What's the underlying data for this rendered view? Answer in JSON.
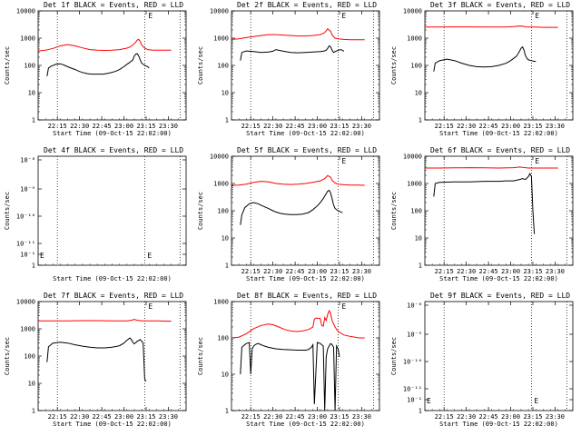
{
  "chart_data": [
    {
      "type": "line",
      "title": "Det 1f BLACK = Events, RED = LLD",
      "xlabel": "Start Time (09-Oct-15 22:02:00)",
      "ylabel": "Counts/sec",
      "y_scale": "log",
      "ylim": [
        1,
        10000
      ],
      "yticks": [
        "1",
        "10",
        "100",
        "1000",
        "10000"
      ],
      "xticks": [
        "22:15",
        "22:30",
        "22:45",
        "23:00",
        "23:15",
        "23:30"
      ],
      "x_minutes": [
        13,
        28,
        43,
        58,
        73,
        88
      ],
      "xlim": [
        0,
        100
      ],
      "vlines": [
        13,
        72,
        96
      ],
      "letter": "E",
      "series": [
        {
          "color": "#ff0000",
          "x": [
            0,
            5,
            10,
            15,
            20,
            25,
            30,
            35,
            40,
            45,
            50,
            55,
            60,
            62,
            64,
            66,
            67,
            68,
            69,
            70,
            72,
            74,
            78,
            82,
            86,
            90
          ],
          "y": [
            340,
            360,
            420,
            520,
            580,
            520,
            440,
            380,
            360,
            355,
            360,
            380,
            430,
            470,
            560,
            720,
            860,
            900,
            760,
            560,
            430,
            380,
            360,
            360,
            360,
            360
          ]
        },
        {
          "color": "#000000",
          "x": [
            6,
            7,
            9,
            12,
            15,
            18,
            21,
            25,
            28,
            30,
            33,
            36,
            40,
            44,
            48,
            52,
            55,
            58,
            60,
            62,
            64,
            65,
            66,
            67,
            68,
            69,
            70,
            72,
            74,
            75
          ],
          "y": [
            40,
            80,
            95,
            110,
            115,
            100,
            85,
            70,
            60,
            55,
            50,
            48,
            48,
            48,
            52,
            60,
            70,
            90,
            110,
            130,
            160,
            220,
            260,
            270,
            220,
            160,
            120,
            100,
            90,
            80
          ]
        }
      ]
    },
    {
      "type": "line",
      "title": "Det 2f BLACK = Events, RED = LLD",
      "xlabel": "Start Time (09-Oct-15 22:02:00)",
      "ylabel": "Counts/sec",
      "y_scale": "log",
      "ylim": [
        1,
        10000
      ],
      "yticks": [
        "1",
        "10",
        "100",
        "1000",
        "10000"
      ],
      "xticks": [
        "22:15",
        "22:30",
        "22:45",
        "23:00",
        "23:15",
        "23:30"
      ],
      "x_minutes": [
        13,
        28,
        43,
        58,
        73,
        88
      ],
      "xlim": [
        0,
        100
      ],
      "vlines": [
        13,
        72,
        96
      ],
      "letter": "E",
      "series": [
        {
          "color": "#ff0000",
          "x": [
            0,
            5,
            10,
            15,
            20,
            25,
            30,
            35,
            40,
            45,
            50,
            55,
            60,
            63,
            65,
            67,
            68,
            70,
            72,
            76,
            80,
            85,
            90
          ],
          "y": [
            900,
            950,
            1050,
            1150,
            1250,
            1350,
            1350,
            1300,
            1250,
            1200,
            1200,
            1250,
            1350,
            1600,
            2200,
            1800,
            1300,
            1000,
            950,
            900,
            880,
            880,
            880
          ]
        },
        {
          "color": "#000000",
          "x": [
            6,
            7,
            10,
            15,
            20,
            25,
            28,
            30,
            35,
            40,
            45,
            50,
            55,
            60,
            62,
            64,
            65,
            66,
            67,
            68,
            69,
            70,
            72,
            74,
            76
          ],
          "y": [
            150,
            300,
            340,
            320,
            300,
            310,
            330,
            380,
            330,
            300,
            290,
            300,
            310,
            320,
            330,
            360,
            420,
            520,
            480,
            360,
            300,
            320,
            360,
            380,
            330
          ]
        }
      ]
    },
    {
      "type": "line",
      "title": "Det 3f BLACK = Events, RED = LLD",
      "xlabel": "Start Time (09-Oct-15 22:02:00)",
      "ylabel": "Counts/sec",
      "y_scale": "log",
      "ylim": [
        1,
        10000
      ],
      "yticks": [
        "1",
        "10",
        "100",
        "1000",
        "10000"
      ],
      "xticks": [
        "22:15",
        "22:30",
        "22:45",
        "23:00",
        "23:15",
        "23:30"
      ],
      "x_minutes": [
        13,
        28,
        43,
        58,
        73,
        88
      ],
      "xlim": [
        0,
        100
      ],
      "vlines": [
        13,
        72,
        96
      ],
      "letter": "E",
      "series": [
        {
          "color": "#ff0000",
          "x": [
            0,
            10,
            20,
            30,
            40,
            50,
            55,
            60,
            64,
            66,
            68,
            70,
            75,
            80,
            90
          ],
          "y": [
            2550,
            2550,
            2600,
            2600,
            2550,
            2550,
            2560,
            2650,
            2800,
            2750,
            2600,
            2550,
            2550,
            2500,
            2500
          ]
        },
        {
          "color": "#000000",
          "x": [
            6,
            7,
            10,
            15,
            20,
            25,
            30,
            35,
            40,
            45,
            50,
            55,
            58,
            60,
            62,
            64,
            65,
            66,
            67,
            68,
            69,
            70,
            72,
            74,
            75
          ],
          "y": [
            60,
            120,
            150,
            170,
            150,
            120,
            100,
            90,
            88,
            90,
            100,
            120,
            150,
            180,
            220,
            330,
            420,
            480,
            360,
            230,
            180,
            160,
            150,
            140,
            140
          ]
        }
      ]
    },
    {
      "type": "line",
      "title": "Det 4f BLACK = Events, RED = LLD",
      "xlabel": "Start Time (09-Oct-15 22:02:00)",
      "ylabel": "Counts/sec",
      "y_scale": "log",
      "ylim": [
        1,
        1e-08
      ],
      "yticks": [
        "10⁻¹¹",
        "10⁻¹⁰",
        "10⁻⁹",
        "10⁻⁸"
      ],
      "yticks_extra": [
        "1",
        "10⁻¹"
      ],
      "xticks": [],
      "x_minutes": [],
      "xlim": [
        0,
        100
      ],
      "vlines": [
        13,
        72,
        96
      ],
      "letter": "E",
      "series": []
    },
    {
      "type": "line",
      "title": "Det 5f BLACK = Events, RED = LLD",
      "xlabel": "Start Time (09-Oct-15 22:02:00)",
      "ylabel": "Counts/sec",
      "y_scale": "log",
      "ylim": [
        1,
        10000
      ],
      "yticks": [
        "1",
        "10",
        "100",
        "1000",
        "10000"
      ],
      "xticks": [
        "22:15",
        "22:30",
        "22:45",
        "23:00",
        "23:15",
        "23:30"
      ],
      "x_minutes": [
        13,
        28,
        43,
        58,
        73,
        88
      ],
      "xlim": [
        0,
        100
      ],
      "vlines": [
        13,
        72,
        96
      ],
      "letter": "E",
      "series": [
        {
          "color": "#ff0000",
          "x": [
            0,
            5,
            10,
            15,
            20,
            25,
            30,
            35,
            40,
            45,
            50,
            55,
            60,
            63,
            65,
            67,
            68,
            70,
            72,
            76,
            80,
            85,
            90
          ],
          "y": [
            850,
            870,
            950,
            1100,
            1200,
            1150,
            1000,
            950,
            920,
            950,
            1000,
            1100,
            1250,
            1500,
            1950,
            1700,
            1300,
            1050,
            950,
            900,
            880,
            880,
            860
          ]
        },
        {
          "color": "#000000",
          "x": [
            6,
            7,
            9,
            12,
            15,
            18,
            21,
            25,
            28,
            30,
            33,
            36,
            40,
            44,
            48,
            52,
            55,
            58,
            60,
            62,
            64,
            65,
            66,
            67,
            68,
            69,
            70,
            72,
            74,
            75
          ],
          "y": [
            30,
            70,
            130,
            180,
            200,
            180,
            150,
            120,
            100,
            90,
            80,
            75,
            72,
            72,
            75,
            85,
            110,
            150,
            200,
            280,
            420,
            520,
            560,
            450,
            280,
            160,
            120,
            100,
            90,
            85
          ]
        }
      ]
    },
    {
      "type": "line",
      "title": "Det 6f BLACK = Events, RED = LLD",
      "xlabel": "Start Time (09-Oct-15 22:02:00)",
      "ylabel": "Counts/sec",
      "y_scale": "log",
      "ylim": [
        1,
        10000
      ],
      "yticks": [
        "1",
        "10",
        "100",
        "1000",
        "10000"
      ],
      "xticks": [
        "22:15",
        "22:30",
        "22:45",
        "23:00",
        "23:15",
        "23:30"
      ],
      "x_minutes": [
        13,
        28,
        43,
        58,
        73,
        88
      ],
      "xlim": [
        0,
        100
      ],
      "vlines": [
        13,
        72,
        96
      ],
      "letter": "E",
      "series": [
        {
          "color": "#ff0000",
          "x": [
            0,
            10,
            20,
            30,
            40,
            50,
            60,
            64,
            66,
            68,
            70,
            75,
            80,
            90
          ],
          "y": [
            3700,
            3700,
            3750,
            3800,
            3750,
            3700,
            3800,
            4000,
            3900,
            3800,
            3700,
            3700,
            3700,
            3700
          ]
        },
        {
          "color": "#000000",
          "x": [
            6,
            7,
            10,
            20,
            30,
            40,
            50,
            55,
            60,
            64,
            66,
            68,
            70,
            71,
            72,
            73,
            74
          ],
          "y": [
            330,
            1000,
            1100,
            1150,
            1150,
            1200,
            1200,
            1250,
            1250,
            1400,
            1500,
            1400,
            1800,
            2300,
            1800,
            100,
            14
          ]
        }
      ]
    },
    {
      "type": "line",
      "title": "Det 7f BLACK = Events, RED = LLD",
      "xlabel": "Start Time (09-Oct-15 22:02:00)",
      "ylabel": "Counts/sec",
      "y_scale": "log",
      "ylim": [
        1,
        10000
      ],
      "yticks": [
        "1",
        "10",
        "100",
        "1000",
        "10000"
      ],
      "xticks": [
        "22:15",
        "22:30",
        "22:45",
        "23:00",
        "23:15",
        "23:30"
      ],
      "x_minutes": [
        13,
        28,
        43,
        58,
        73,
        88
      ],
      "xlim": [
        0,
        100
      ],
      "vlines": [
        13,
        72,
        96
      ],
      "letter": "E",
      "series": [
        {
          "color": "#ff0000",
          "x": [
            0,
            10,
            20,
            30,
            40,
            50,
            60,
            63,
            65,
            67,
            70,
            75,
            80,
            90
          ],
          "y": [
            1950,
            1950,
            1950,
            2000,
            2000,
            1950,
            1950,
            2050,
            2200,
            2050,
            1950,
            1950,
            1950,
            1900
          ]
        },
        {
          "color": "#000000",
          "x": [
            6,
            7,
            10,
            15,
            20,
            25,
            30,
            35,
            40,
            45,
            50,
            55,
            58,
            60,
            62,
            63,
            64,
            65,
            67,
            69,
            70,
            71,
            72,
            73
          ],
          "y": [
            60,
            220,
            300,
            320,
            300,
            260,
            230,
            210,
            200,
            200,
            210,
            240,
            300,
            380,
            460,
            400,
            320,
            280,
            350,
            400,
            350,
            300,
            14,
            12
          ]
        }
      ]
    },
    {
      "type": "line",
      "title": "Det 8f BLACK = Events, RED = LLD",
      "xlabel": "Start Time (09-Oct-15 22:02:00)",
      "ylabel": "Counts/sec",
      "y_scale": "log",
      "ylim": [
        1,
        1000
      ],
      "yticks": [
        "1",
        "10",
        "100",
        "1000"
      ],
      "xticks": [
        "22:15",
        "22:30",
        "22:45",
        "23:00",
        "23:15",
        "23:30"
      ],
      "x_minutes": [
        13,
        28,
        43,
        58,
        73,
        88
      ],
      "xlim": [
        0,
        100
      ],
      "vlines": [
        13,
        72,
        96
      ],
      "letter": "E",
      "series": [
        {
          "color": "#ff0000",
          "x": [
            0,
            5,
            10,
            15,
            20,
            25,
            28,
            32,
            36,
            40,
            44,
            48,
            52,
            55,
            56,
            57,
            58,
            60,
            61,
            62,
            63,
            64,
            65,
            66,
            67,
            68,
            70,
            72,
            76,
            80,
            86,
            90
          ],
          "y": [
            100,
            105,
            130,
            180,
            220,
            240,
            230,
            200,
            170,
            155,
            150,
            155,
            170,
            200,
            330,
            350,
            350,
            340,
            220,
            210,
            360,
            300,
            440,
            560,
            470,
            300,
            200,
            150,
            120,
            110,
            100,
            100
          ]
        },
        {
          "color": "#000000",
          "x": [
            6,
            7,
            8,
            9,
            10,
            11,
            12,
            13,
            14,
            15,
            16,
            17,
            18,
            20,
            22,
            25,
            28,
            30,
            35,
            40,
            45,
            50,
            52,
            54,
            55,
            56,
            58,
            60,
            61,
            62,
            63,
            64,
            65,
            66,
            67,
            68,
            69,
            70,
            71,
            72,
            73
          ],
          "y": [
            10,
            55,
            60,
            65,
            70,
            72,
            74,
            10,
            50,
            60,
            65,
            68,
            70,
            65,
            60,
            55,
            52,
            50,
            48,
            47,
            46,
            46,
            48,
            55,
            65,
            1.5,
            75,
            70,
            65,
            60,
            1,
            30,
            50,
            60,
            70,
            65,
            55,
            1,
            60,
            50,
            30
          ]
        }
      ]
    },
    {
      "type": "line",
      "title": "Det 9f BLACK = Events, RED = LLD",
      "xlabel": "Start Time (09-Oct-15 22:02:00)",
      "ylabel": "Counts/sec",
      "y_scale": "log",
      "ylim": [
        1,
        1e-08
      ],
      "yticks": [
        "10⁻¹¹",
        "10⁻¹⁰",
        "10⁻⁹",
        "10⁻⁸"
      ],
      "yticks_extra": [
        "1",
        "10⁻¹"
      ],
      "xticks": [
        "22:15",
        "22:30",
        "22:45",
        "23:00",
        "23:15",
        "23:30"
      ],
      "x_minutes": [
        13,
        28,
        43,
        58,
        73,
        88
      ],
      "xlim": [
        0,
        100
      ],
      "vlines": [
        13,
        72,
        96
      ],
      "letter": "E",
      "series": []
    }
  ]
}
